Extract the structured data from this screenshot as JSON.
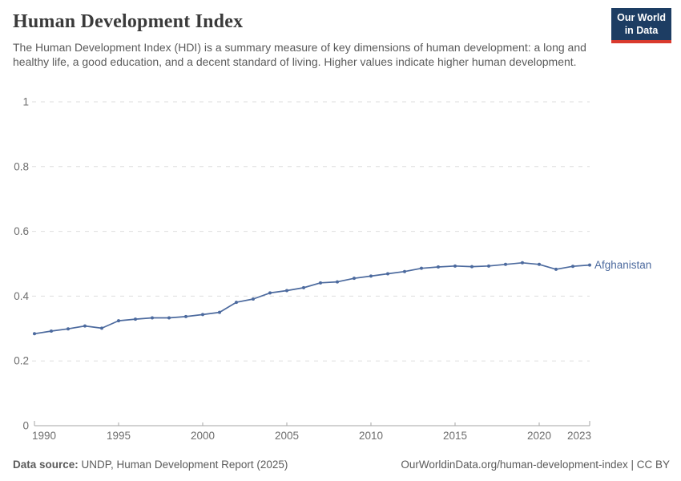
{
  "header": {
    "title": "Human Development Index",
    "subtitle": "The Human Development Index (HDI) is a summary measure of key dimensions of human development: a long and healthy life, a good education, and a decent standard of living. Higher values indicate higher human development."
  },
  "logo": {
    "line1": "Our World",
    "line2": "in Data",
    "bg_color": "#1d3d63",
    "bar_color": "#d93a2e"
  },
  "footer": {
    "source_label": "Data source:",
    "source_text": " UNDP, Human Development Report (2025)",
    "credit": "OurWorldinData.org/human-development-index | CC BY"
  },
  "chart_data": {
    "type": "line",
    "title": "Human Development Index",
    "xlabel": "",
    "ylabel": "",
    "ylim": [
      0,
      1
    ],
    "y_ticks": [
      0,
      0.2,
      0.4,
      0.6,
      0.8,
      1
    ],
    "y_tick_labels": [
      "0",
      "0.2",
      "0.4",
      "0.6",
      "0.8",
      "1"
    ],
    "x_ticks": [
      1990,
      1995,
      2000,
      2005,
      2010,
      2015,
      2020,
      2023
    ],
    "x_tick_labels": [
      "1990",
      "1995",
      "2000",
      "2005",
      "2010",
      "2015",
      "2020",
      "2023"
    ],
    "grid": "horizontal-dashed",
    "legend_position": "end-of-line-label",
    "x": [
      1990,
      1991,
      1992,
      1993,
      1994,
      1995,
      1996,
      1997,
      1998,
      1999,
      2000,
      2001,
      2002,
      2003,
      2004,
      2005,
      2006,
      2007,
      2008,
      2009,
      2010,
      2011,
      2012,
      2013,
      2014,
      2015,
      2016,
      2017,
      2018,
      2019,
      2020,
      2021,
      2022,
      2023
    ],
    "series": [
      {
        "name": "Afghanistan",
        "color": "#4c6a9e",
        "values": [
          0.284,
          0.292,
          0.299,
          0.308,
          0.301,
          0.324,
          0.329,
          0.333,
          0.333,
          0.337,
          0.343,
          0.35,
          0.381,
          0.391,
          0.41,
          0.417,
          0.426,
          0.441,
          0.444,
          0.455,
          0.462,
          0.469,
          0.476,
          0.486,
          0.49,
          0.493,
          0.491,
          0.493,
          0.498,
          0.503,
          0.498,
          0.483,
          0.492,
          0.496
        ]
      }
    ],
    "axis_color": "#a6a6a6",
    "grid_color": "#dedede",
    "tick_label_color": "#6e6e6e"
  }
}
